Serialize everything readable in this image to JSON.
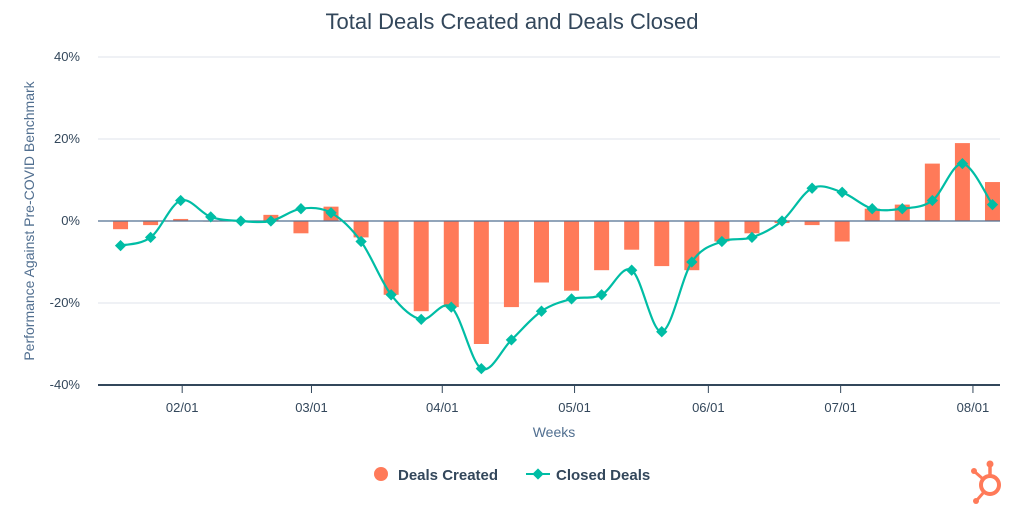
{
  "chart_data": {
    "type": "bar+line",
    "title": "Total Deals Created and Deals Closed",
    "xlabel": "Weeks",
    "ylabel": "Performance Against Pre-COVID Benchmark",
    "ylim": [
      -40,
      40
    ],
    "yticks": [
      40,
      20,
      0,
      -20,
      -40
    ],
    "ytick_labels": [
      "40%",
      "20%",
      "0%",
      "-20%",
      "-40%"
    ],
    "xlim": [
      0,
      30
    ],
    "x_ticks": [
      {
        "label": "02/01",
        "x": 2.8
      },
      {
        "label": "03/01",
        "x": 7.1
      },
      {
        "label": "04/01",
        "x": 11.45
      },
      {
        "label": "05/01",
        "x": 15.85
      },
      {
        "label": "06/01",
        "x": 20.3
      },
      {
        "label": "07/01",
        "x": 24.7
      },
      {
        "label": "08/01",
        "x": 29.1
      }
    ],
    "weeks": [
      0.75,
      1.75,
      2.75,
      3.75,
      4.75,
      5.75,
      6.75,
      7.75,
      8.75,
      9.75,
      10.75,
      11.75,
      12.75,
      13.75,
      14.75,
      15.75,
      16.75,
      17.75,
      18.75,
      19.75,
      20.75,
      21.75,
      22.75,
      23.75,
      24.75,
      25.75,
      26.75,
      27.75,
      28.75,
      29.75
    ],
    "series": [
      {
        "name": "Deals Created",
        "kind": "bar",
        "color": "#ff7a59",
        "values": [
          -2,
          -1,
          0.5,
          0,
          0,
          1.5,
          -3,
          3.5,
          -4,
          -18,
          -22,
          -21,
          -30,
          -21,
          -15,
          -17,
          -12,
          -7,
          -11,
          -12,
          -5,
          -3,
          -0.5,
          -1,
          -5,
          3,
          4,
          14,
          19,
          9.5
        ]
      },
      {
        "name": "Closed Deals",
        "kind": "line",
        "color": "#00bda5",
        "values": [
          -6,
          -4,
          5,
          1,
          0,
          0,
          3,
          2,
          -5,
          -18,
          -24,
          -21,
          -36,
          -29,
          -22,
          -19,
          -18,
          -12,
          -27,
          -10,
          -5,
          -4,
          0,
          8,
          7,
          3,
          3,
          5,
          14,
          4
        ]
      }
    ],
    "legend": [
      "Deals Created",
      "Closed Deals"
    ],
    "legend_position": "bottom-center",
    "grid": true
  },
  "logo": {
    "name": "HubSpot"
  }
}
